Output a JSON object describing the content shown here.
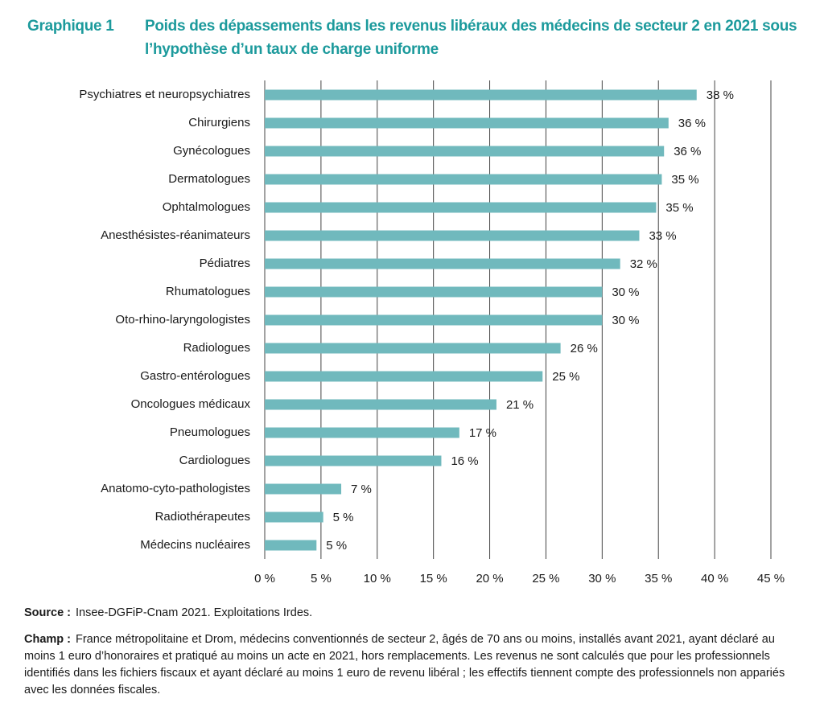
{
  "chart_data": {
    "type": "barh",
    "figure_number": "Graphique 1",
    "title": "Poids des dépassements dans les revenus libéraux des médecins de secteur 2 en 2021 sous l’hypothèse d’un taux de charge uniforme",
    "categories": [
      "Psychiatres et neuropsychiatres",
      "Chirurgiens",
      "Gynécologues",
      "Dermatologues",
      "Ophtalmologues",
      "Anesthésistes-réanimateurs",
      "Pédiatres",
      "Rhumatologues",
      "Oto-rhino-laryngologistes",
      "Radiologues",
      "Gastro-entérologues",
      "Oncologues médicaux",
      "Pneumologues",
      "Cardiologues",
      "Anatomo-cyto-pathologistes",
      "Radiothérapeutes",
      "Médecins nucléaires"
    ],
    "values": [
      38.4,
      35.9,
      35.5,
      35.3,
      34.8,
      33.3,
      31.6,
      30.0,
      30.0,
      26.3,
      24.7,
      20.6,
      17.3,
      15.7,
      6.8,
      5.2,
      4.6
    ],
    "value_labels": [
      "38 %",
      "36 %",
      "36 %",
      "35 %",
      "35 %",
      "33 %",
      "32 %",
      "30 %",
      "30 %",
      "26 %",
      "25 %",
      "21 %",
      "17 %",
      "16 %",
      "7 %",
      "5 %",
      "5 %"
    ],
    "color": "#70b9bd",
    "xlim": [
      0,
      45
    ],
    "xticks": [
      {
        "value": 0,
        "label": "0 %"
      },
      {
        "value": 5,
        "label": "5 %"
      },
      {
        "value": 10,
        "label": "10 %"
      },
      {
        "value": 15,
        "label": "15 %"
      },
      {
        "value": 20,
        "label": "20 %"
      },
      {
        "value": 25,
        "label": "25 %"
      },
      {
        "value": 30,
        "label": "30 %"
      },
      {
        "value": 35,
        "label": "35 %"
      },
      {
        "value": 40,
        "label": "40 %"
      },
      {
        "value": 45,
        "label": "45 %"
      }
    ],
    "grid": true,
    "notes": [
      {
        "label": "Source :",
        "text": "Insee-DGFiP-Cnam 2021. Exploitations Irdes."
      },
      {
        "label": "Champ :",
        "text": "France métropolitaine et Drom, médecins conventionnés de secteur 2, âgés de 70 ans ou moins, installés avant 2021, ayant déclaré au moins 1 euro d’honoraires et pratiqué au moins un acte en 2021, hors remplacements. Les revenus ne sont calculés que pour les professionnels identifiés dans les fichiers fiscaux et ayant déclaré au moins 1 euro de revenu libéral ; les effectifs tiennent compte des professionnels non appariés avec les données fiscales."
      }
    ]
  }
}
